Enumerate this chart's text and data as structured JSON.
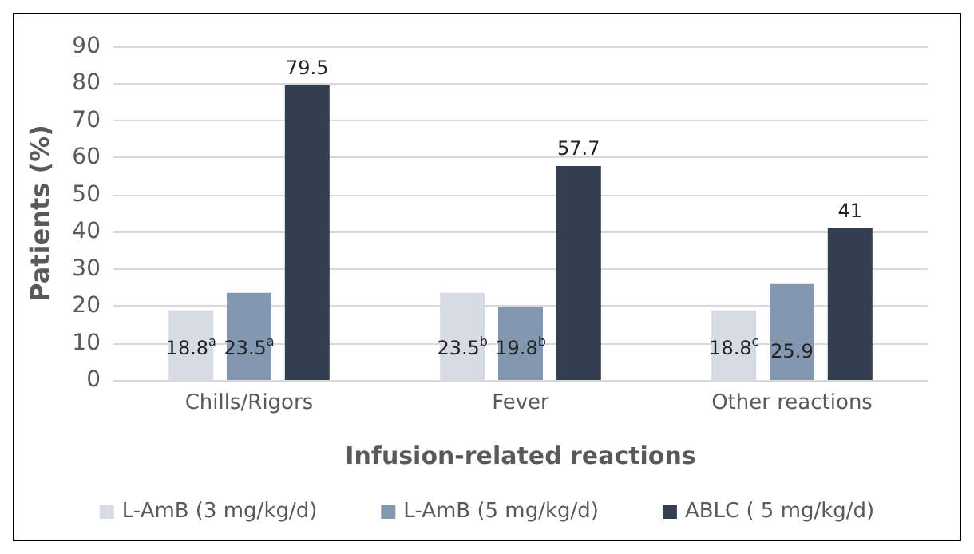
{
  "chart_data": {
    "type": "bar",
    "xlabel": "Infusion-related reactions",
    "ylabel": "Patients (%)",
    "categories": [
      "Chills/Rigors",
      "Fever",
      "Other reactions"
    ],
    "series": [
      {
        "name": "L-AmB (3 mg/kg/d)",
        "color": "#d6dce5",
        "values": [
          18.8,
          23.5,
          18.8
        ],
        "value_labels": [
          "18.8$^{a}$",
          "23.5$^{b}$",
          "18.8$^{c}$"
        ]
      },
      {
        "name": "L-AmB (5 mg/kg/d)",
        "color": "#8497b0",
        "values": [
          23.5,
          19.8,
          25.9
        ],
        "value_labels": [
          "23.5$^{a}$",
          "19.8$^{b}$",
          "25.9"
        ]
      },
      {
        "name": "ABLC ( 5 mg/kg/d)",
        "color": "#333f50",
        "values": [
          79.5,
          57.7,
          41
        ],
        "value_labels": [
          "79.5",
          "57.7",
          "41"
        ]
      }
    ],
    "ylim": [
      0,
      90
    ],
    "yticks": [
      0,
      10,
      20,
      30,
      40,
      50,
      60,
      70,
      80,
      90
    ],
    "grid": "y",
    "legend": "bottom"
  }
}
